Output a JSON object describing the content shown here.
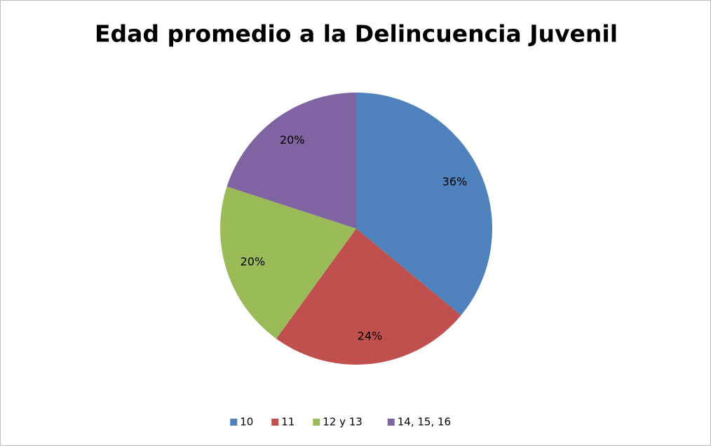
{
  "chart_data": {
    "type": "pie",
    "title": "Edad promedio a la Delincuencia Juvenil",
    "categories": [
      "10",
      "11",
      "12 y 13",
      "14, 15, 16"
    ],
    "values": [
      36,
      24,
      20,
      20
    ],
    "value_labels": [
      "36%",
      "24%",
      "20%",
      "20%"
    ],
    "colors": [
      "#4f81bd",
      "#c0504d",
      "#9bbb59",
      "#8064a2"
    ],
    "legend": "bottom"
  }
}
